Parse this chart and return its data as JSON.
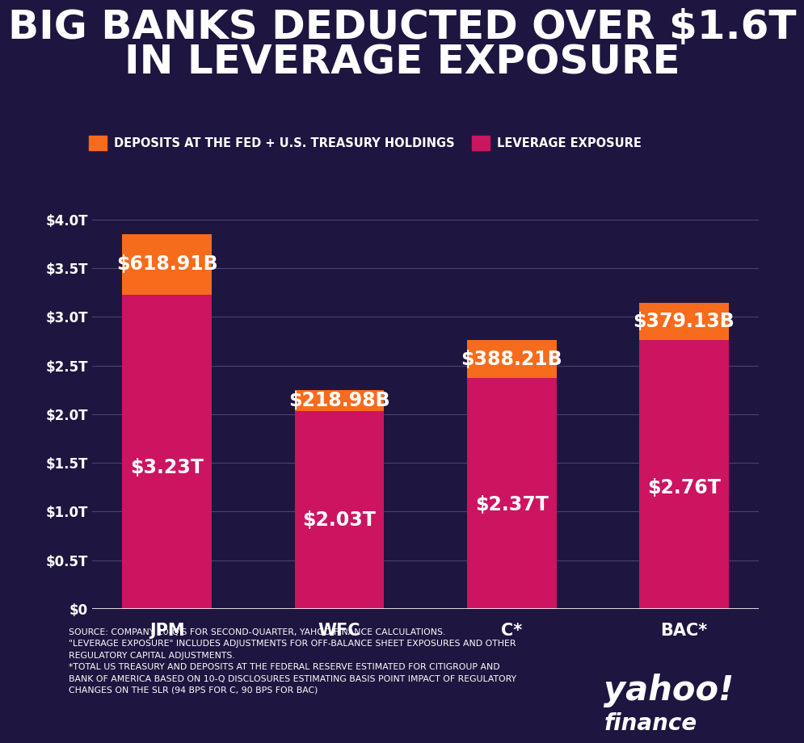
{
  "title_line1": "BIG BANKS DEDUCTED OVER $1.6T",
  "title_line2": "IN LEVERAGE EXPOSURE",
  "background_color": "#1e1640",
  "bar_color_pink": "#cc1461",
  "bar_color_orange": "#f76b1c",
  "text_color": "#ffffff",
  "legend_label_orange": "DEPOSITS AT THE FED + U.S. TREASURY HOLDINGS",
  "legend_label_pink": "LEVERAGE EXPOSURE",
  "categories": [
    "JPM",
    "WFC",
    "C*",
    "BAC*"
  ],
  "leverage_values": [
    3.23,
    2.03,
    2.37,
    2.76
  ],
  "deduction_values": [
    0.61891,
    0.21898,
    0.38821,
    0.37913
  ],
  "leverage_labels": [
    "$3.23T",
    "$2.03T",
    "$2.37T",
    "$2.76T"
  ],
  "deduction_labels": [
    "$618.91B",
    "$218.98B",
    "$388.21B",
    "$379.13B"
  ],
  "yticks": [
    0,
    0.5,
    1.0,
    1.5,
    2.0,
    2.5,
    3.0,
    3.5,
    4.0
  ],
  "ytick_labels": [
    "$0",
    "$0.5T",
    "$1.0T",
    "$1.5T",
    "$2.0T",
    "$2.5T",
    "$3.0T",
    "$3.5T",
    "$4.0T"
  ],
  "ylim": [
    0,
    4.3
  ],
  "footnote_line1": "SOURCE: COMPANY 10-Q'S FOR SECOND-QUARTER, YAHOO FINANCE CALCULATIONS.",
  "footnote_line2": "\"LEVERAGE EXPOSURE\" INCLUDES ADJUSTMENTS FOR OFF-BALANCE SHEET EXPOSURES AND OTHER",
  "footnote_line3": "REGULATORY CAPITAL ADJUSTMENTS.",
  "footnote_line4": "*TOTAL US TREASURY AND DEPOSITS AT THE FEDERAL RESERVE ESTIMATED FOR CITIGROUP AND",
  "footnote_line5": "BANK OF AMERICA BASED ON 10-Q DISCLOSURES ESTIMATING BASIS POINT IMPACT OF REGULATORY",
  "footnote_line6": "CHANGES ON THE SLR (94 BPS FOR C, 90 BPS FOR BAC)"
}
